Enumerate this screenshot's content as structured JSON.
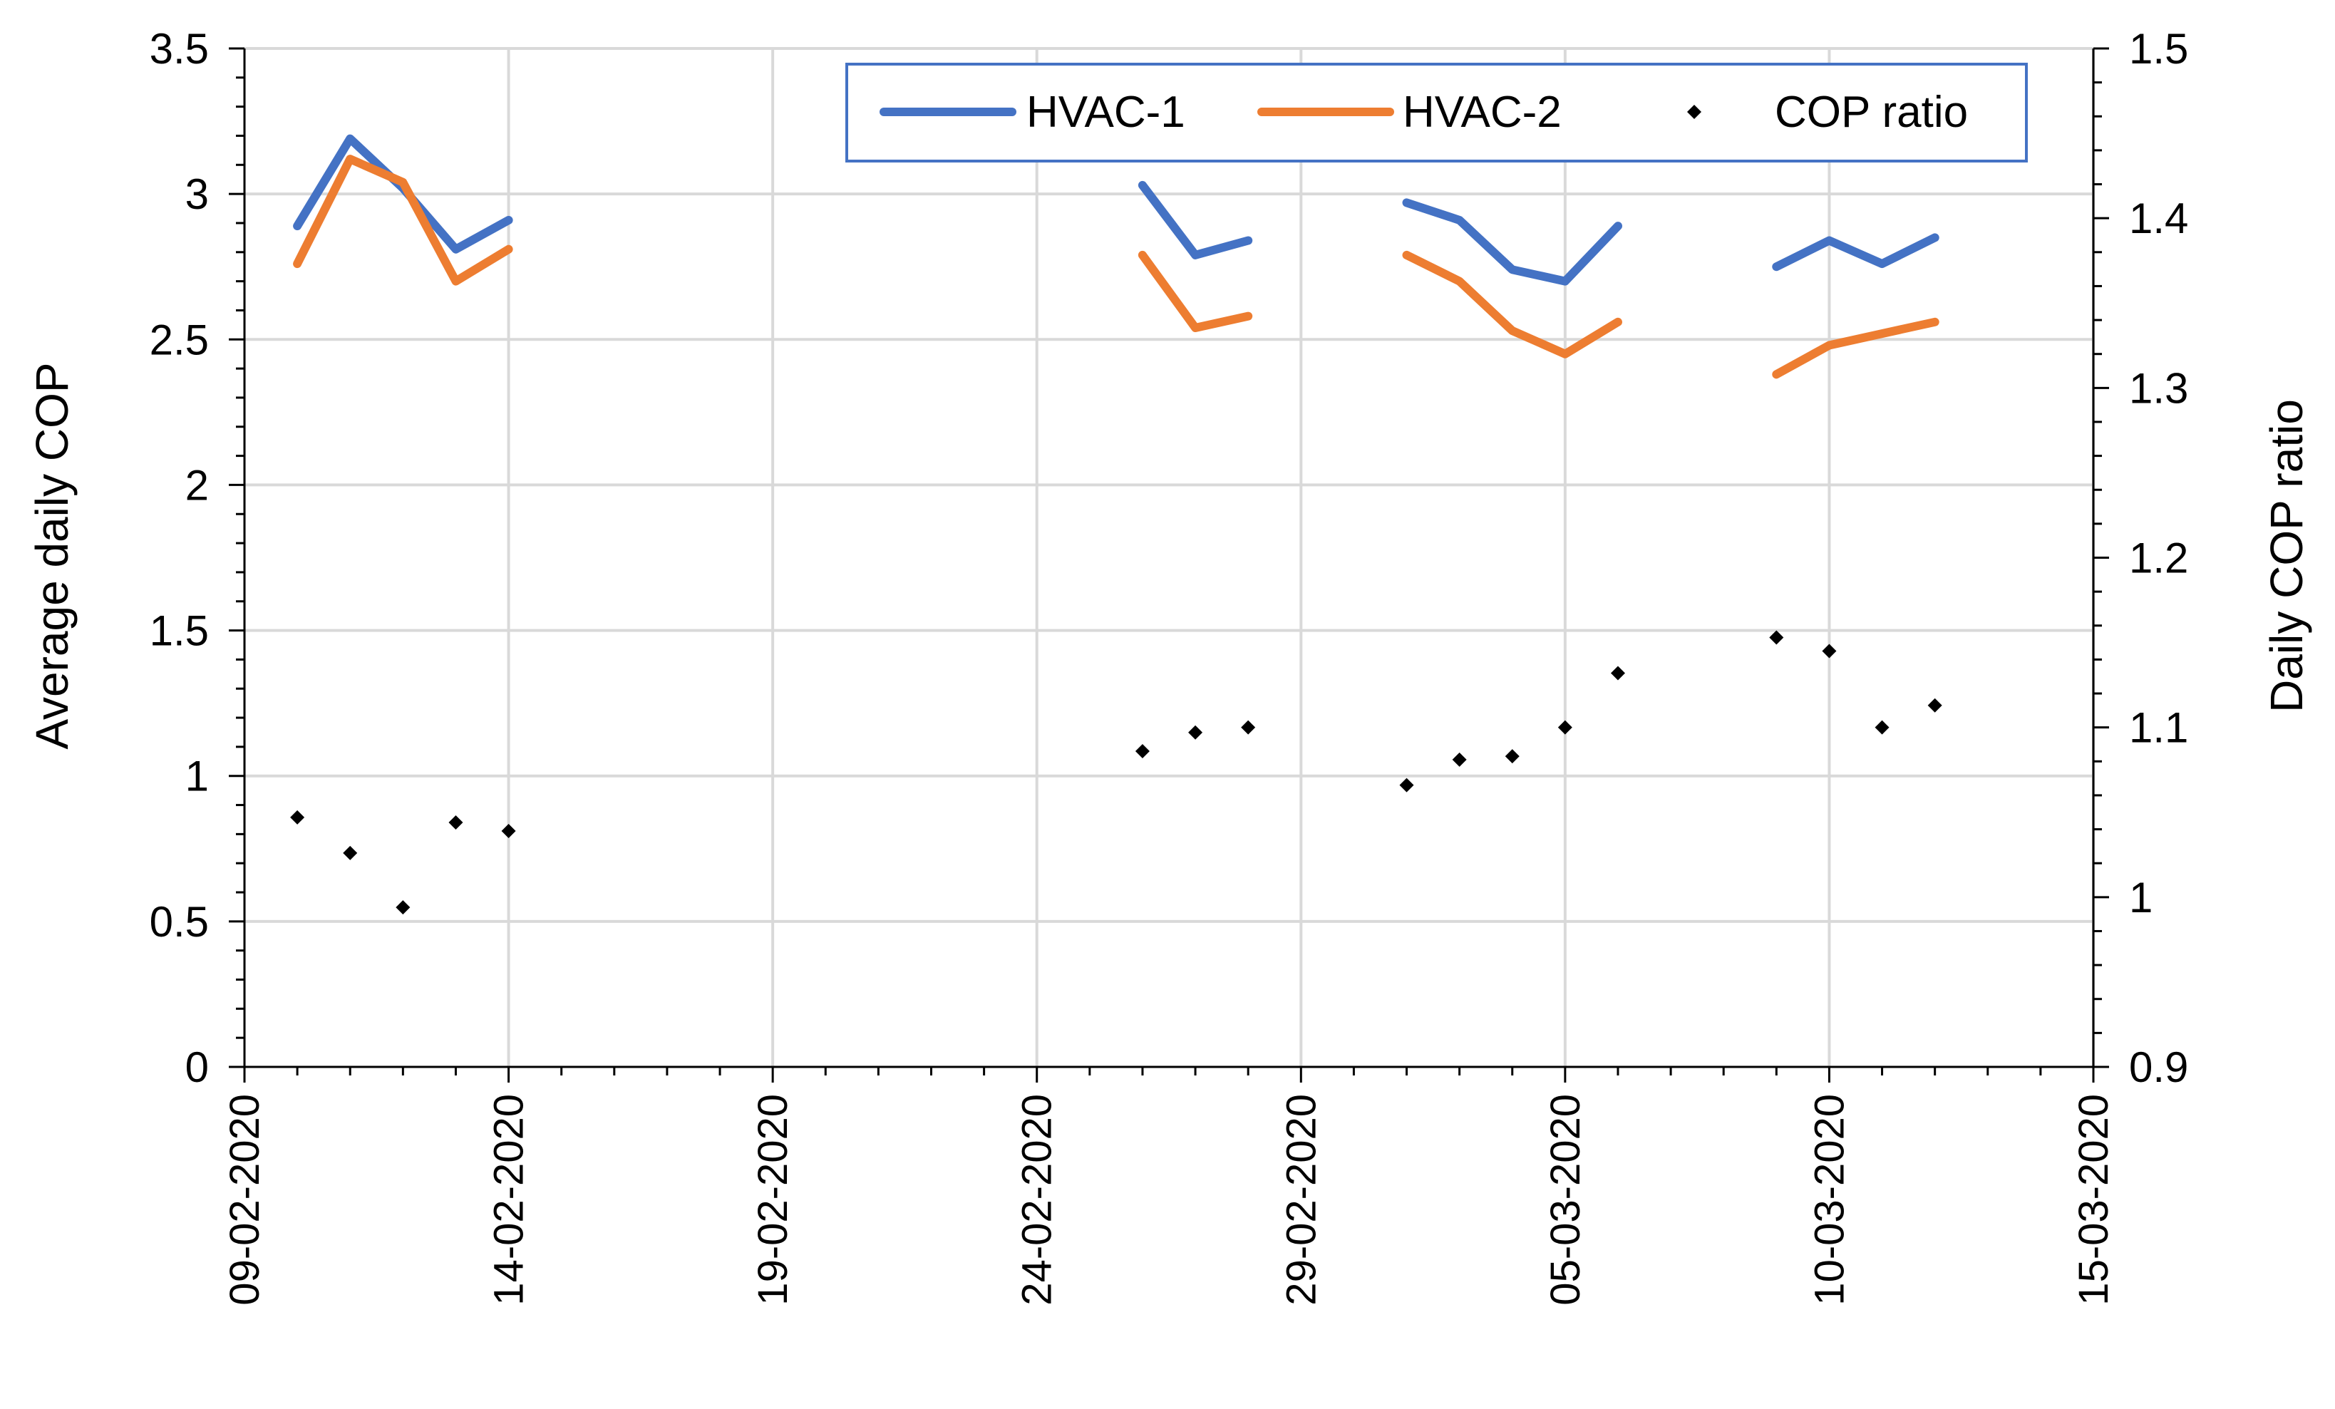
{
  "chart_data": {
    "type": "line",
    "title": "",
    "xlabel": "",
    "ylabel": "Average daily COP",
    "y2label": "Daily COP ratio",
    "xlim": [
      "09-02-2020",
      "15-03-2020"
    ],
    "ylim": [
      0,
      3.5
    ],
    "y2lim": [
      0.9,
      1.5
    ],
    "grid": true,
    "legend_position": "top-right",
    "x_tick_labels": [
      "09-02-2020",
      "14-02-2020",
      "19-02-2020",
      "24-02-2020",
      "29-02-2020",
      "05-03-2020",
      "10-03-2020",
      "15-03-2020"
    ],
    "y_tick_labels": [
      "0",
      "0.5",
      "1",
      "1.5",
      "2",
      "2.5",
      "3",
      "3.5"
    ],
    "y2_tick_labels": [
      "0.9",
      "1",
      "1.1",
      "1.2",
      "1.3",
      "1.4",
      "1.5"
    ],
    "series": [
      {
        "name": "HVAC-1",
        "kind": "line",
        "axis": "left",
        "color": "#4472C4",
        "segments": [
          [
            [
              "10-02-2020",
              2.89
            ],
            [
              "11-02-2020",
              3.19
            ],
            [
              "12-02-2020",
              3.02
            ],
            [
              "13-02-2020",
              2.81
            ],
            [
              "14-02-2020",
              2.91
            ]
          ],
          [
            [
              "26-02-2020",
              3.03
            ],
            [
              "27-02-2020",
              2.79
            ],
            [
              "28-02-2020",
              2.84
            ]
          ],
          [
            [
              "02-03-2020",
              2.97
            ],
            [
              "03-03-2020",
              2.91
            ],
            [
              "04-03-2020",
              2.74
            ],
            [
              "05-03-2020",
              2.7
            ],
            [
              "06-03-2020",
              2.89
            ]
          ],
          [
            [
              "09-03-2020",
              2.75
            ],
            [
              "10-03-2020",
              2.84
            ],
            [
              "11-03-2020",
              2.76
            ],
            [
              "12-03-2020",
              2.85
            ]
          ]
        ]
      },
      {
        "name": "HVAC-2",
        "kind": "line",
        "axis": "left",
        "color": "#ED7D31",
        "segments": [
          [
            [
              "10-02-2020",
              2.76
            ],
            [
              "11-02-2020",
              3.12
            ],
            [
              "12-02-2020",
              3.04
            ],
            [
              "13-02-2020",
              2.7
            ],
            [
              "14-02-2020",
              2.81
            ]
          ],
          [
            [
              "26-02-2020",
              2.79
            ],
            [
              "27-02-2020",
              2.54
            ],
            [
              "28-02-2020",
              2.58
            ]
          ],
          [
            [
              "02-03-2020",
              2.79
            ],
            [
              "03-03-2020",
              2.7
            ],
            [
              "04-03-2020",
              2.53
            ],
            [
              "05-03-2020",
              2.45
            ],
            [
              "06-03-2020",
              2.56
            ]
          ],
          [
            [
              "09-03-2020",
              2.38
            ],
            [
              "10-03-2020",
              2.48
            ],
            [
              "11-03-2020",
              2.52
            ],
            [
              "12-03-2020",
              2.56
            ]
          ]
        ]
      },
      {
        "name": "COP ratio",
        "kind": "scatter",
        "axis": "right",
        "color": "#000000",
        "points": [
          [
            "10-02-2020",
            1.047
          ],
          [
            "11-02-2020",
            1.026
          ],
          [
            "12-02-2020",
            0.994
          ],
          [
            "13-02-2020",
            1.044
          ],
          [
            "14-02-2020",
            1.039
          ],
          [
            "26-02-2020",
            1.086
          ],
          [
            "27-02-2020",
            1.097
          ],
          [
            "28-02-2020",
            1.1
          ],
          [
            "02-03-2020",
            1.066
          ],
          [
            "03-03-2020",
            1.081
          ],
          [
            "04-03-2020",
            1.083
          ],
          [
            "05-03-2020",
            1.1
          ],
          [
            "06-03-2020",
            1.132
          ],
          [
            "09-03-2020",
            1.153
          ],
          [
            "10-03-2020",
            1.145
          ],
          [
            "11-03-2020",
            1.1
          ],
          [
            "12-03-2020",
            1.113
          ]
        ]
      }
    ]
  }
}
